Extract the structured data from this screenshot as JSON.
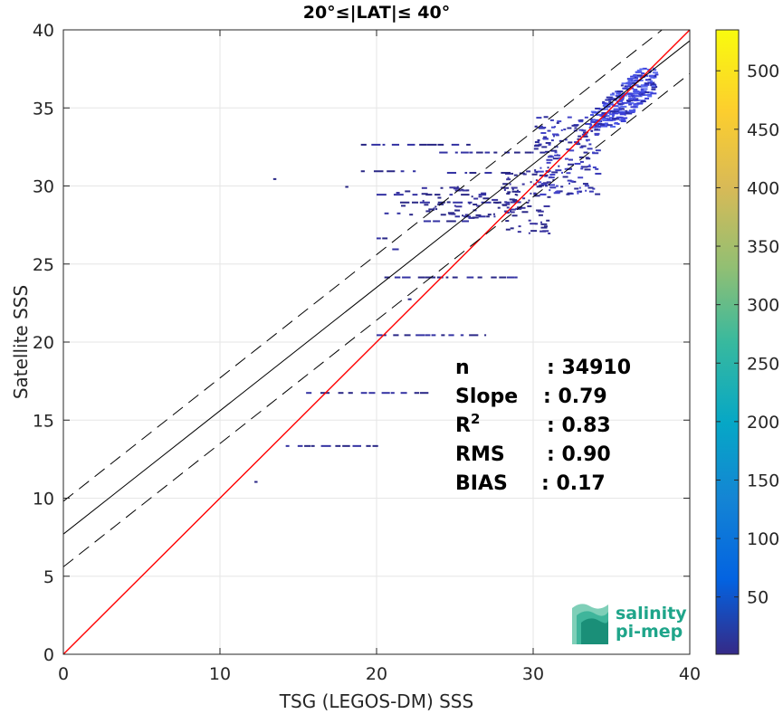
{
  "chart_data": {
    "type": "heatmap",
    "title": "20°≤|LAT|≤ 40°",
    "xlabel": "TSG (LEGOS-DM) SSS",
    "ylabel": "Satellite SSS",
    "xlim": [
      0,
      40
    ],
    "ylim": [
      0,
      40
    ],
    "xticks": [
      "0",
      "10",
      "20",
      "30",
      "40"
    ],
    "yticks": [
      "0",
      "5",
      "10",
      "15",
      "20",
      "25",
      "30",
      "35",
      "40"
    ],
    "grid": true,
    "colorbar": {
      "range": [
        1,
        535
      ],
      "ticks": [
        "50",
        "100",
        "150",
        "200",
        "250",
        "300",
        "350",
        "400",
        "450",
        "500"
      ],
      "colormap": "parula"
    },
    "lines": [
      {
        "name": "identity",
        "color": "#ff0000",
        "slope": 1.0,
        "intercept": 0.0
      },
      {
        "name": "fit",
        "color": "#000000",
        "slope": 0.79,
        "intercept": 7.7
      },
      {
        "name": "fit_plus",
        "color": "#000000",
        "dashed": true,
        "slope": 0.79,
        "intercept": 9.8
      },
      {
        "name": "fit_minus",
        "color": "#000000",
        "dashed": true,
        "slope": 0.79,
        "intercept": 5.6
      }
    ],
    "density_clusters": [
      {
        "x": [
          33.5,
          37.8
        ],
        "y": [
          33.8,
          37.6
        ],
        "level": "high"
      },
      {
        "x": [
          30.0,
          34.0
        ],
        "y": [
          29.5,
          34.5
        ],
        "level": "medium"
      },
      {
        "x": [
          28.0,
          31.0
        ],
        "y": [
          27.0,
          31.0
        ],
        "level": "low"
      },
      {
        "x": [
          21.0,
          29.0
        ],
        "y": [
          28.0,
          30.0
        ],
        "level": "low"
      }
    ],
    "density_rows": [
      {
        "y": 32.7,
        "x": [
          19.0,
          26.0
        ]
      },
      {
        "y": 32.2,
        "x": [
          24.0,
          30.0
        ]
      },
      {
        "y": 31.0,
        "x": [
          19.0,
          22.5
        ]
      },
      {
        "y": 30.9,
        "x": [
          24.5,
          29.0
        ]
      },
      {
        "y": 30.5,
        "x": [
          13.4,
          13.6
        ]
      },
      {
        "y": 30.0,
        "x": [
          18.0,
          18.2
        ]
      },
      {
        "y": 29.5,
        "x": [
          20.0,
          27.0
        ]
      },
      {
        "y": 29.0,
        "x": [
          21.5,
          28.5
        ]
      },
      {
        "y": 28.3,
        "x": [
          20.5,
          22.0
        ]
      },
      {
        "y": 28.1,
        "x": [
          25.0,
          27.5
        ]
      },
      {
        "y": 27.8,
        "x": [
          23.0,
          26.0
        ]
      },
      {
        "y": 26.7,
        "x": [
          20.0,
          20.7
        ]
      },
      {
        "y": 26.0,
        "x": [
          21.0,
          21.6
        ]
      },
      {
        "y": 24.2,
        "x": [
          20.5,
          29.0
        ]
      },
      {
        "y": 22.8,
        "x": [
          22.0,
          22.5
        ]
      },
      {
        "y": 20.5,
        "x": [
          20.0,
          27.0
        ]
      },
      {
        "y": 16.8,
        "x": [
          15.5,
          23.5
        ]
      },
      {
        "y": 13.4,
        "x": [
          14.2,
          20.1
        ]
      },
      {
        "y": 11.1,
        "x": [
          12.2,
          12.4
        ]
      }
    ],
    "stats": [
      {
        "label": "n",
        "value": ": 34910"
      },
      {
        "label": "Slope",
        "value": ": 0.79"
      },
      {
        "label": "R",
        "sup": "2",
        "value": ": 0.83"
      },
      {
        "label": "RMS",
        "value": ": 0.90"
      },
      {
        "label": "BIAS",
        "value": ": 0.17"
      }
    ]
  },
  "logo": {
    "line1": "salinity",
    "line2": "pi-mep"
  }
}
